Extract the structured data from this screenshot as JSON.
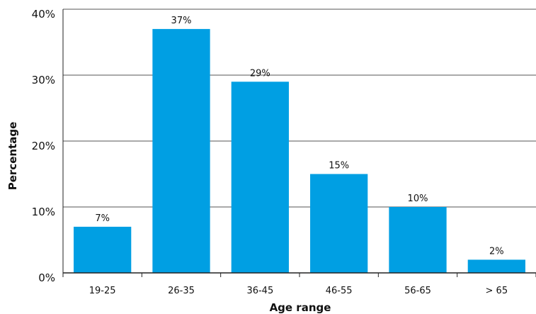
{
  "chart_data": {
    "type": "bar",
    "title": "",
    "xlabel": "Age range",
    "ylabel": "Percentage",
    "categories": [
      "19-25",
      "26-35",
      "36-45",
      "46-55",
      "56-65",
      "> 65"
    ],
    "values": [
      7,
      37,
      29,
      15,
      10,
      2
    ],
    "data_labels": [
      "7%",
      "37%",
      "29%",
      "15%",
      "10%",
      "2%"
    ],
    "ylim": [
      0,
      40
    ],
    "yticks": [
      0,
      10,
      20,
      30,
      40
    ],
    "ytick_labels": [
      "0%",
      "10%",
      "20%",
      "30%",
      "40%"
    ],
    "grid": "horizontal",
    "bar_color": "#009fe3",
    "grid_color": "#555555",
    "axis_color": "#222222"
  }
}
